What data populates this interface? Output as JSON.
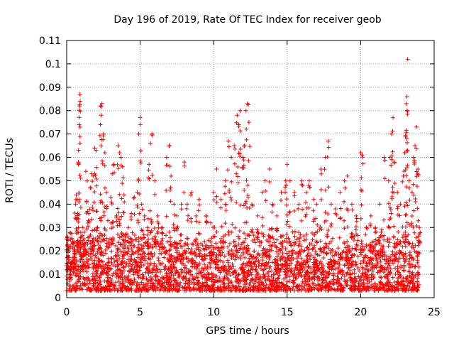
{
  "chart_data": {
    "type": "scatter",
    "title": "Day 196 of 2019, Rate Of TEC Index for receiver geob",
    "xlabel": "GPS time / hours",
    "ylabel": "ROTI / TECUs",
    "xlim": [
      0,
      25
    ],
    "ylim": [
      0,
      0.11
    ],
    "xticks": [
      "0",
      "5",
      "10",
      "15",
      "20",
      "25"
    ],
    "yticks": [
      "0",
      "0.01",
      "0.02",
      "0.03",
      "0.04",
      "0.05",
      "0.06",
      "0.07",
      "0.08",
      "0.09",
      "0.1",
      "0.11"
    ],
    "grid": true,
    "marker": "+",
    "color": "#ff0000",
    "series": [
      {
        "points": [
          [
            0.05,
            0.026
          ],
          [
            0.1,
            0.018
          ],
          [
            0.15,
            0.022
          ],
          [
            0.2,
            0.012
          ],
          [
            0.3,
            0.015
          ],
          [
            0.4,
            0.024
          ],
          [
            0.5,
            0.02
          ],
          [
            0.6,
            0.04
          ],
          [
            0.65,
            0.044
          ],
          [
            0.7,
            0.042
          ],
          [
            0.75,
            0.036
          ],
          [
            0.8,
            0.058
          ],
          [
            0.85,
            0.074
          ],
          [
            0.87,
            0.082
          ],
          [
            0.9,
            0.087
          ],
          [
            0.92,
            0.084
          ],
          [
            1.0,
            0.026
          ],
          [
            1.1,
            0.03
          ],
          [
            1.2,
            0.028
          ],
          [
            1.3,
            0.054
          ],
          [
            1.4,
            0.05
          ],
          [
            1.5,
            0.036
          ],
          [
            1.6,
            0.047
          ],
          [
            1.7,
            0.053
          ],
          [
            1.8,
            0.052
          ],
          [
            1.9,
            0.064
          ],
          [
            2.0,
            0.063
          ],
          [
            2.1,
            0.03
          ],
          [
            2.2,
            0.026
          ],
          [
            2.3,
            0.082
          ],
          [
            2.35,
            0.078
          ],
          [
            2.4,
            0.083
          ],
          [
            2.5,
            0.07
          ],
          [
            2.6,
            0.062
          ],
          [
            2.7,
            0.045
          ],
          [
            2.8,
            0.033
          ],
          [
            3.0,
            0.043
          ],
          [
            3.1,
            0.053
          ],
          [
            3.2,
            0.057
          ],
          [
            3.4,
            0.035
          ],
          [
            3.5,
            0.065
          ],
          [
            3.6,
            0.062
          ],
          [
            3.7,
            0.06
          ],
          [
            3.8,
            0.056
          ],
          [
            3.9,
            0.044
          ],
          [
            4.0,
            0.027
          ],
          [
            4.2,
            0.03
          ],
          [
            4.4,
            0.036
          ],
          [
            4.6,
            0.043
          ],
          [
            4.8,
            0.045
          ],
          [
            4.9,
            0.07
          ],
          [
            5.0,
            0.077
          ],
          [
            5.1,
            0.04
          ],
          [
            5.3,
            0.035
          ],
          [
            5.5,
            0.03
          ],
          [
            5.6,
            0.057
          ],
          [
            5.7,
            0.066
          ],
          [
            5.8,
            0.07
          ],
          [
            6.0,
            0.05
          ],
          [
            6.2,
            0.035
          ],
          [
            6.5,
            0.03
          ],
          [
            6.8,
            0.06
          ],
          [
            7.0,
            0.065
          ],
          [
            7.1,
            0.052
          ],
          [
            7.3,
            0.04
          ],
          [
            7.5,
            0.035
          ],
          [
            7.8,
            0.04
          ],
          [
            8.0,
            0.058
          ],
          [
            8.2,
            0.04
          ],
          [
            8.5,
            0.045
          ],
          [
            8.8,
            0.035
          ],
          [
            9.0,
            0.042
          ],
          [
            9.5,
            0.035
          ],
          [
            9.8,
            0.032
          ],
          [
            10.0,
            0.045
          ],
          [
            10.2,
            0.055
          ],
          [
            10.5,
            0.042
          ],
          [
            10.8,
            0.05
          ],
          [
            11.0,
            0.067
          ],
          [
            11.2,
            0.06
          ],
          [
            11.4,
            0.065
          ],
          [
            11.6,
            0.078
          ],
          [
            11.7,
            0.074
          ],
          [
            11.8,
            0.08
          ],
          [
            12.0,
            0.06
          ],
          [
            12.1,
            0.065
          ],
          [
            12.2,
            0.08
          ],
          [
            12.3,
            0.083
          ],
          [
            12.4,
            0.075
          ],
          [
            12.6,
            0.04
          ],
          [
            13.0,
            0.035
          ],
          [
            13.3,
            0.045
          ],
          [
            13.5,
            0.05
          ],
          [
            13.8,
            0.055
          ],
          [
            14.0,
            0.04
          ],
          [
            14.3,
            0.035
          ],
          [
            14.6,
            0.045
          ],
          [
            14.9,
            0.05
          ],
          [
            15.0,
            0.057
          ],
          [
            15.2,
            0.05
          ],
          [
            15.5,
            0.045
          ],
          [
            15.8,
            0.04
          ],
          [
            16.0,
            0.05
          ],
          [
            16.3,
            0.045
          ],
          [
            16.5,
            0.05
          ],
          [
            16.8,
            0.042
          ],
          [
            17.0,
            0.04
          ],
          [
            17.3,
            0.055
          ],
          [
            17.6,
            0.06
          ],
          [
            17.8,
            0.067
          ],
          [
            18.0,
            0.04
          ],
          [
            18.3,
            0.038
          ],
          [
            18.6,
            0.045
          ],
          [
            18.9,
            0.05
          ],
          [
            19.1,
            0.052
          ],
          [
            19.4,
            0.04
          ],
          [
            19.7,
            0.035
          ],
          [
            20.0,
            0.062
          ],
          [
            20.1,
            0.061
          ],
          [
            20.4,
            0.03
          ],
          [
            20.7,
            0.035
          ],
          [
            21.0,
            0.03
          ],
          [
            21.3,
            0.04
          ],
          [
            21.6,
            0.06
          ],
          [
            21.9,
            0.05
          ],
          [
            22.0,
            0.06
          ],
          [
            22.1,
            0.07
          ],
          [
            22.2,
            0.077
          ],
          [
            22.3,
            0.058
          ],
          [
            22.5,
            0.045
          ],
          [
            22.7,
            0.04
          ],
          [
            22.9,
            0.052
          ],
          [
            23.0,
            0.062
          ],
          [
            23.05,
            0.069
          ],
          [
            23.1,
            0.083
          ],
          [
            23.15,
            0.086
          ],
          [
            23.2,
            0.102
          ],
          [
            23.3,
            0.05
          ],
          [
            23.5,
            0.045
          ],
          [
            23.6,
            0.06
          ],
          [
            23.7,
            0.065
          ],
          [
            23.8,
            0.073
          ],
          [
            23.9,
            0.055
          ],
          [
            24.0,
            0.03
          ]
        ]
      }
    ],
    "baseline_band": {
      "x_range": [
        0.0,
        24.0
      ],
      "y_range": [
        0.003,
        0.02
      ]
    }
  }
}
